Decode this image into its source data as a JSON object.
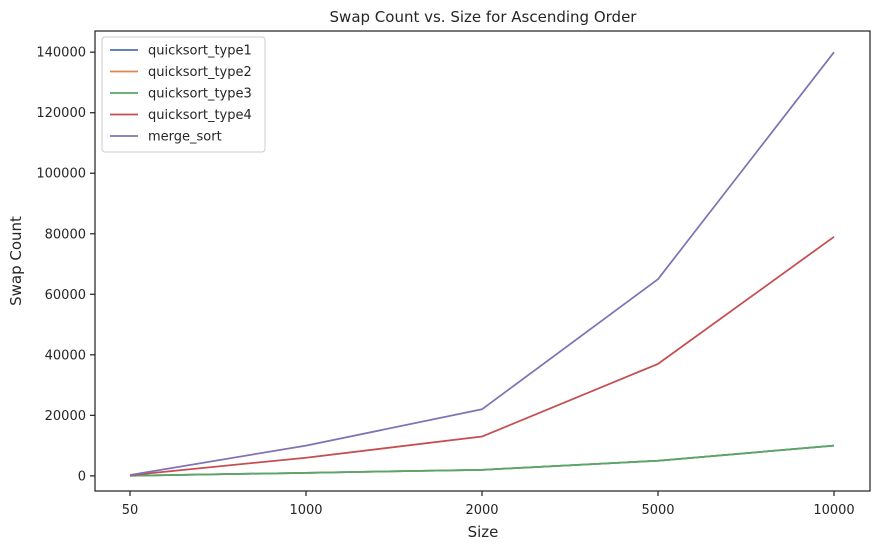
{
  "chart_data": {
    "type": "line",
    "title": "Swap Count vs. Size for Ascending Order",
    "xlabel": "Size",
    "ylabel": "Swap Count",
    "categories": [
      "50",
      "1000",
      "2000",
      "5000",
      "10000"
    ],
    "ylim": [
      -5000,
      147000
    ],
    "yticks": [
      0,
      20000,
      40000,
      60000,
      80000,
      100000,
      120000,
      140000
    ],
    "ytick_labels": [
      "0",
      "20000",
      "40000",
      "60000",
      "80000",
      "100000",
      "120000",
      "140000"
    ],
    "grid": false,
    "legend_position": "top-left",
    "series": [
      {
        "name": "quicksort_type1",
        "color": "#4c72b0",
        "values": [
          49,
          999,
          1999,
          4999,
          9999
        ]
      },
      {
        "name": "quicksort_type2",
        "color": "#dd8452",
        "values": [
          49,
          999,
          1999,
          4999,
          9999
        ]
      },
      {
        "name": "quicksort_type3",
        "color": "#55a868",
        "values": [
          49,
          999,
          1999,
          4999,
          9999
        ]
      },
      {
        "name": "quicksort_type4",
        "color": "#c44e52",
        "values": [
          200,
          6000,
          13000,
          37000,
          79000
        ]
      },
      {
        "name": "merge_sort",
        "color": "#8172b3",
        "values": [
          300,
          10000,
          22000,
          65000,
          140000
        ]
      }
    ]
  }
}
